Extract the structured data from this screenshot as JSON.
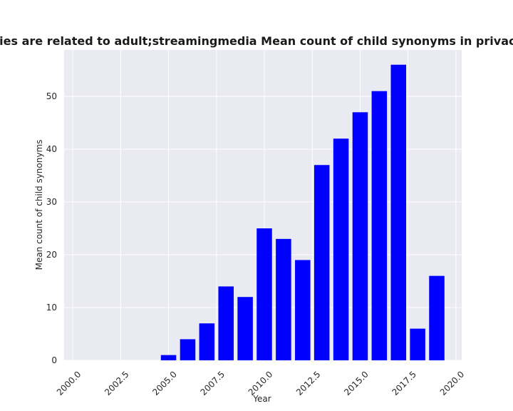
{
  "chart_data": {
    "type": "bar",
    "title": "Categories are related to adult;streamingmedia Mean count of child synonyms in privacy policies",
    "xlabel": "Year",
    "ylabel": "Mean count of child synonyms",
    "x": [
      2005,
      2006,
      2007,
      2008,
      2009,
      2010,
      2011,
      2012,
      2013,
      2014,
      2015,
      2016,
      2017,
      2018,
      2019
    ],
    "values": [
      1,
      4,
      7,
      14,
      12,
      25,
      23,
      19,
      37,
      42,
      47,
      51,
      56,
      6,
      16
    ],
    "xlim": [
      1999.55,
      2020.3
    ],
    "ylim": [
      0,
      58.8
    ],
    "xticks": [
      "2000.0",
      "2002.5",
      "2005.0",
      "2007.5",
      "2010.0",
      "2012.5",
      "2015.0",
      "2017.5",
      "2020.0"
    ],
    "xtick_values": [
      2000,
      2002.5,
      2005,
      2007.5,
      2010,
      2012.5,
      2015,
      2017.5,
      2020
    ],
    "yticks": [
      "0",
      "10",
      "20",
      "30",
      "40",
      "50"
    ],
    "ytick_values": [
      0,
      10,
      20,
      30,
      40,
      50
    ],
    "bar_color": "#0000ff",
    "background_color": "#eaeaf2",
    "grid_color": "#ffffff",
    "grid": true
  }
}
